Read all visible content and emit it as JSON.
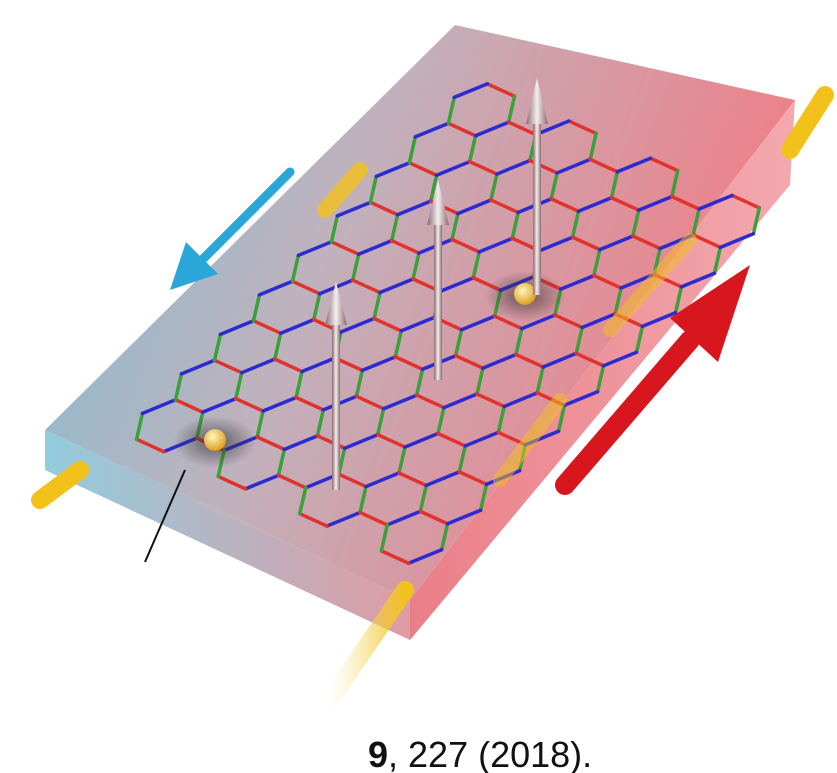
{
  "caption": {
    "volume": "9",
    "rest": ", 227 (2018)."
  }
}
